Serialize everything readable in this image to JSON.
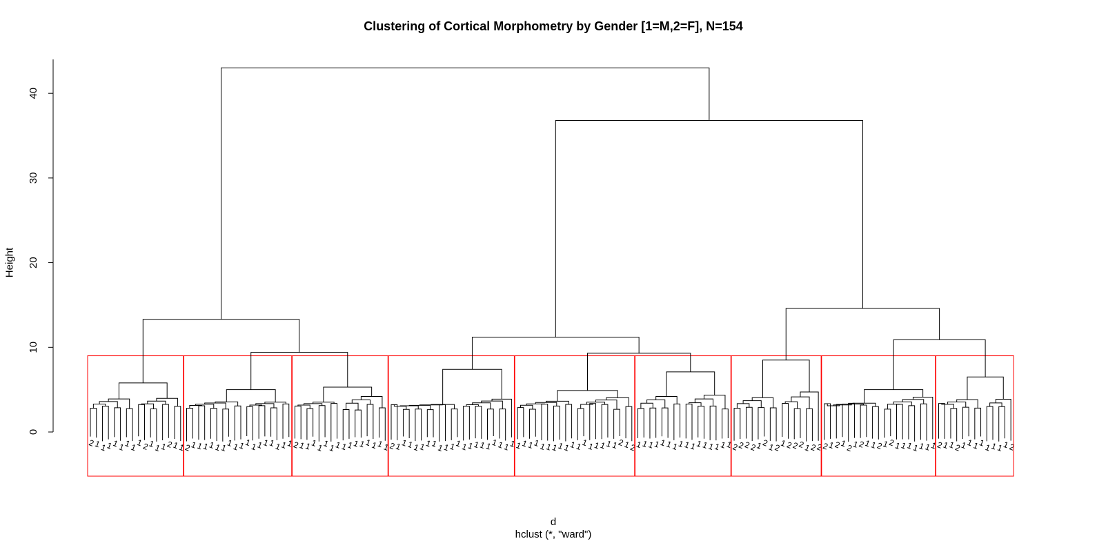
{
  "chart_data": {
    "type": "dendrogram",
    "title": "Clustering of Cortical Morphometry by Gender [1=M,2=F], N=154",
    "xlabel": "d",
    "sub": "hclust (*, \"ward\")",
    "ylabel": "Height",
    "ylim": [
      0,
      44
    ],
    "yticks": [
      0,
      10,
      20,
      30,
      40
    ],
    "grid": false,
    "n_leaves": 154,
    "cut_height": 9,
    "cluster_box_color": "#ff0000",
    "line_color": "#000000",
    "top_merges": [
      {
        "name": "root",
        "height": 43
      },
      {
        "name": "right-group",
        "height": 36.8
      },
      {
        "name": "left-group",
        "height": 13.3
      },
      {
        "name": "right-right-group",
        "height": 14.6
      },
      {
        "name": "middle-group",
        "height": 11.2
      },
      {
        "name": "far-right-group",
        "height": 10.9
      },
      {
        "name": "left-subgroup",
        "height": 9.4
      },
      {
        "name": "middle-right-subgroup",
        "height": 9.3
      }
    ],
    "clusters": [
      {
        "id": 1,
        "leaves": 16,
        "height": 5.8,
        "sub_heights": [
          4.2,
          4.3
        ],
        "labels": [
          "2",
          "1",
          "1",
          "1",
          "1",
          "1",
          "1",
          "1",
          "1",
          "2",
          "1",
          "1",
          "1",
          "2",
          "1",
          "1"
        ]
      },
      {
        "id": 2,
        "leaves": 18,
        "height": 5.0,
        "sub_heights": [
          3.7,
          3.7
        ],
        "labels": [
          "2",
          "1",
          "1",
          "1",
          "1",
          "1",
          "1",
          "1",
          "1",
          "1",
          "1",
          "1",
          "1",
          "1",
          "1",
          "1",
          "1",
          "1"
        ]
      },
      {
        "id": 3,
        "leaves": 16,
        "height": 5.3,
        "sub_heights": [
          3.7,
          4.6
        ],
        "labels": [
          "2",
          "1",
          "1",
          "1",
          "1",
          "1",
          "1",
          "1",
          "1",
          "1",
          "1",
          "1",
          "1",
          "1",
          "1",
          "1"
        ]
      },
      {
        "id": 4,
        "leaves": 21,
        "height": 7.4,
        "sub_heights": [
          3.3,
          4.1
        ],
        "labels": [
          "2",
          "1",
          "1",
          "1",
          "1",
          "1",
          "1",
          "1",
          "1",
          "1",
          "1",
          "1",
          "1",
          "1",
          "1",
          "1",
          "1",
          "1",
          "1",
          "1",
          "1"
        ]
      },
      {
        "id": 5,
        "leaves": 20,
        "height": 4.9,
        "sub_heights": [
          3.8,
          4.3
        ],
        "labels": [
          "1",
          "1",
          "1",
          "1",
          "1",
          "1",
          "1",
          "1",
          "1",
          "1",
          "1",
          "1",
          "1",
          "1",
          "1",
          "1",
          "1",
          "2",
          "1",
          "2"
        ]
      },
      {
        "id": 6,
        "leaves": 16,
        "height": 7.1,
        "sub_heights": [
          4.6,
          4.8
        ],
        "labels": [
          "1",
          "1",
          "1",
          "1",
          "1",
          "1",
          "1",
          "1",
          "1",
          "1",
          "1",
          "1",
          "1",
          "1",
          "1",
          "1"
        ]
      },
      {
        "id": 7,
        "leaves": 15,
        "height": 8.5,
        "sub_heights": [
          4.4,
          5.3
        ],
        "labels": [
          "2",
          "2",
          "2",
          "2",
          "1",
          "2",
          "1",
          "2",
          "1",
          "2",
          "2",
          "2",
          "1",
          "2",
          "2"
        ]
      },
      {
        "id": 8,
        "leaves": 19,
        "height": 5.0,
        "sub_heights": [
          3.5,
          4.4
        ],
        "labels": [
          "2",
          "1",
          "2",
          "1",
          "2",
          "1",
          "2",
          "1",
          "1",
          "2",
          "1",
          "2",
          "1",
          "1",
          "1",
          "1",
          "1",
          "1",
          "1"
        ]
      },
      {
        "id": 9,
        "leaves": 13,
        "height": 6.5,
        "sub_heights": [
          4.1,
          4.3
        ],
        "labels": [
          "2",
          "1",
          "1",
          "2",
          "1",
          "1",
          "1",
          "1",
          "1",
          "1",
          "1",
          "1",
          "2"
        ]
      }
    ]
  }
}
